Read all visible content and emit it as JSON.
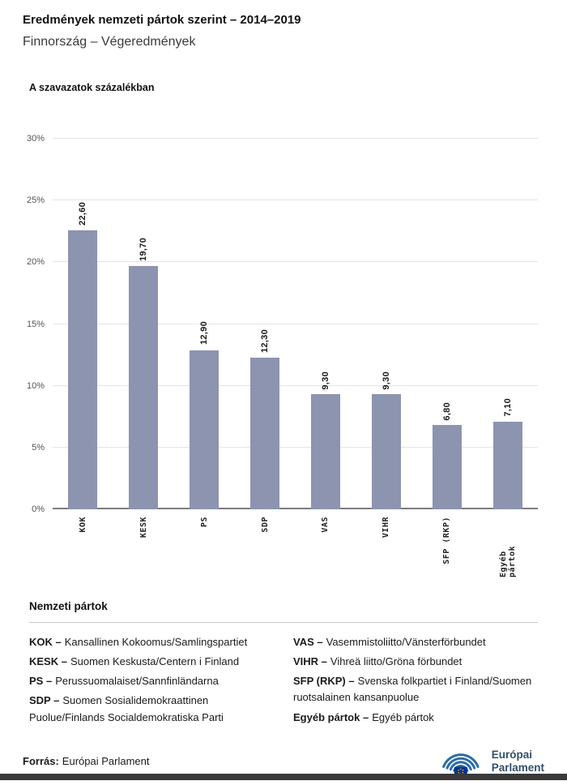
{
  "header": {
    "title": "Eredmények nemzeti pártok szerint – 2014–2019",
    "subtitle": "Finnország – Végeredmények"
  },
  "chart_data": {
    "type": "bar",
    "title": "A szavazatok százalékban",
    "categories": [
      "KOK",
      "KESK",
      "PS",
      "SDP",
      "VAS",
      "VIHR",
      "SFP (RKP)",
      "Egyéb pártok"
    ],
    "values": [
      22.6,
      19.7,
      12.9,
      12.3,
      9.3,
      9.3,
      6.8,
      7.1
    ],
    "value_labels": [
      "22,60",
      "19,70",
      "12,90",
      "12,30",
      "9,30",
      "9,30",
      "6,80",
      "7,10"
    ],
    "ylim": [
      0,
      30
    ],
    "ytick_labels": [
      "0%",
      "5%",
      "10%",
      "15%",
      "20%",
      "25%",
      "30%"
    ],
    "grid": true,
    "legend_position": "none",
    "bar_color": "#8c94b0"
  },
  "legend": {
    "heading": "Nemzeti pártok",
    "col1": [
      {
        "abbr": "KOK –",
        "name": "Kansallinen Kokoomus/Samlingspartiet"
      },
      {
        "abbr": "KESK –",
        "name": "Suomen Keskusta/Centern i Finland"
      },
      {
        "abbr": "PS –",
        "name": "Perussuomalaiset/Sannfinländarna"
      },
      {
        "abbr": "SDP –",
        "name": "Suomen Sosialidemokraattinen Puolue/Finlands Socialdemokratiska Parti"
      }
    ],
    "col2": [
      {
        "abbr": "VAS –",
        "name": "Vasemmistoliitto/Vänsterförbundet"
      },
      {
        "abbr": "VIHR –",
        "name": "Vihreä liitto/Gröna förbundet"
      },
      {
        "abbr": "SFP (RKP) –",
        "name": "Svenska folkpartiet i Finland/Suomen ruotsalainen kansanpuolue"
      },
      {
        "abbr": "Egyéb pártok –",
        "name": "Egyéb pártok"
      }
    ]
  },
  "footer": {
    "source_label": "Forrás:",
    "source_value": "Európai Parlament",
    "logo_line1": "Európai",
    "logo_line2": "Parlament"
  },
  "colors": {
    "bar": "#8c94b0",
    "logo_arcs": "#2e6da4",
    "flag_blue": "#003399",
    "flag_stars": "#ffcc00",
    "logo_text": "#33506b",
    "bottom_strip": "#3a3a3a"
  }
}
